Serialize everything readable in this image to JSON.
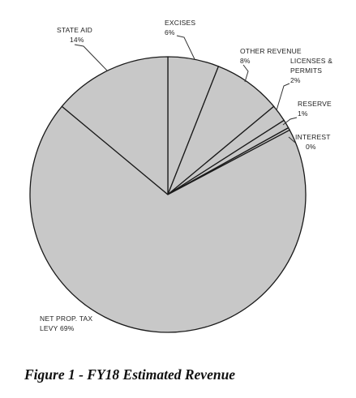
{
  "caption": "Figure 1 - FY18 Estimated Revenue",
  "chart_data": {
    "type": "pie",
    "start": "top, clockwise",
    "slice_color": "#c8c8c8",
    "edge_color": "#1a1a1a",
    "slices": [
      {
        "label": "EXCISES",
        "pct_text": "6%",
        "value": 6
      },
      {
        "label": "OTHER REVENUE",
        "pct_text": "8%",
        "value": 8
      },
      {
        "label": "LICENSES & PERMITS",
        "pct_text": "2%",
        "value": 2
      },
      {
        "label": "RESERVE",
        "pct_text": "1%",
        "value": 1
      },
      {
        "label": "INTEREST",
        "pct_text": "0%",
        "value": 0.3
      },
      {
        "label": "NET PROP. TAX LEVY",
        "pct_text": "69%",
        "value": 69
      },
      {
        "label": "STATE AID",
        "pct_text": "14%",
        "value": 14
      }
    ]
  }
}
